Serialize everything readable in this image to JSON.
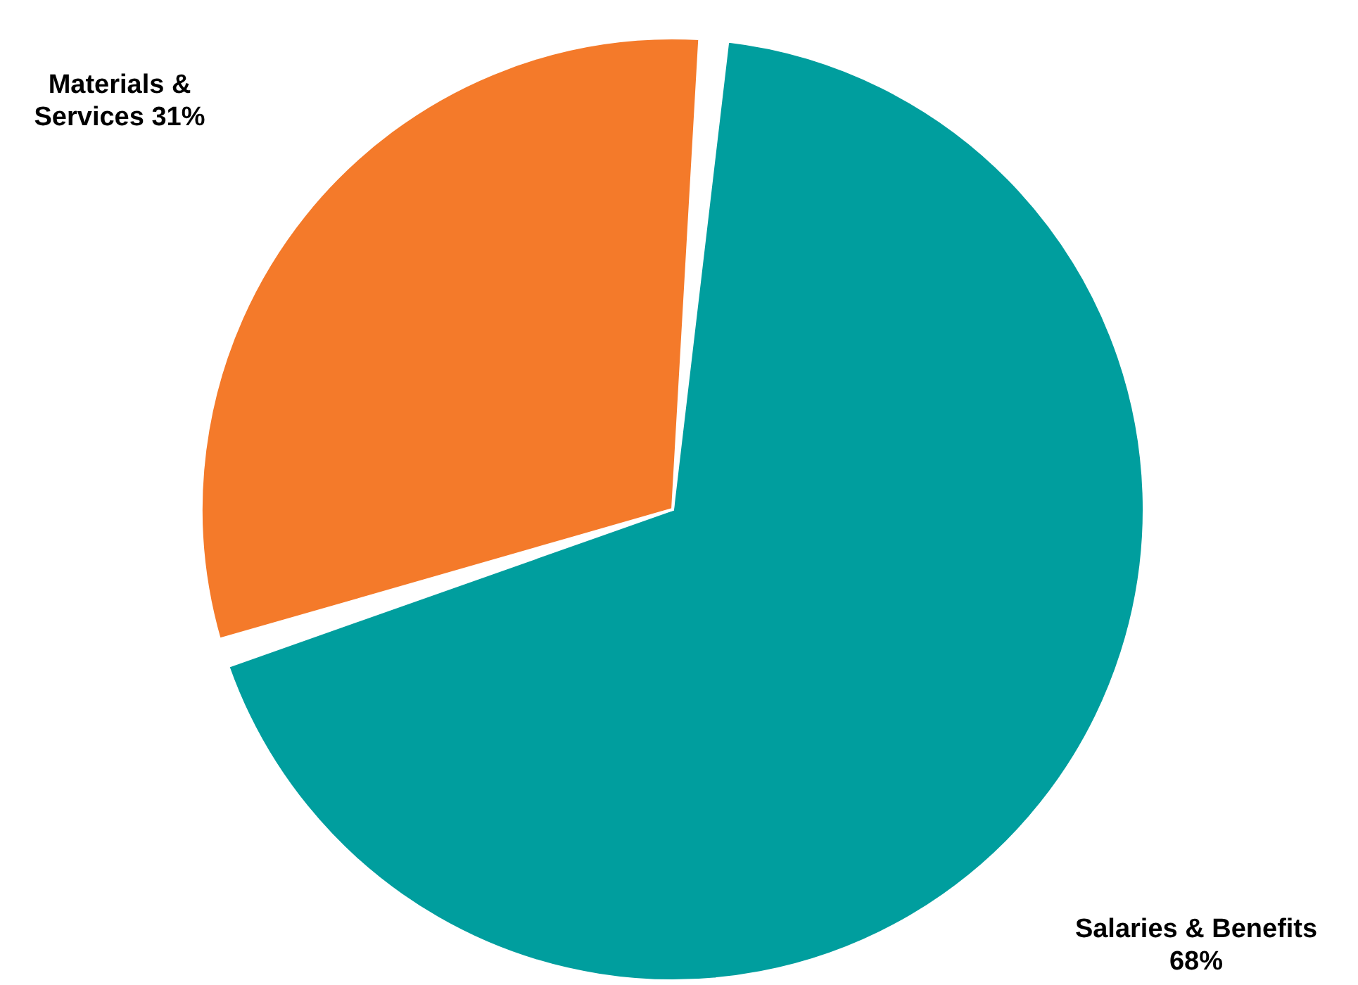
{
  "chart_data": {
    "type": "pie",
    "categories": [
      "Salaries & Benefits",
      "Materials & Services"
    ],
    "values": [
      68,
      31
    ],
    "colors": [
      "#009e9e",
      "#f47a2a"
    ],
    "value_labels": [
      "68%",
      "31%"
    ]
  }
}
